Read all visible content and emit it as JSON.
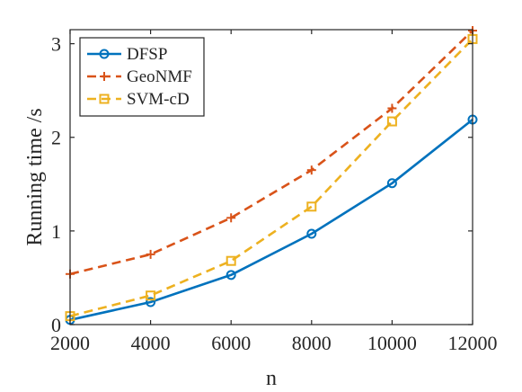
{
  "chart_data": {
    "type": "line",
    "title": "",
    "xlabel": "n",
    "ylabel": "Running time /s",
    "x": [
      2000,
      4000,
      6000,
      8000,
      10000,
      12000
    ],
    "xlim": [
      2000,
      12000
    ],
    "ylim": [
      0,
      3.15
    ],
    "xticks": [
      2000,
      4000,
      6000,
      8000,
      10000,
      12000
    ],
    "yticks": [
      0,
      1,
      2,
      3
    ],
    "grid": false,
    "legend_position": "top-left",
    "series": [
      {
        "name": "DFSP",
        "color": "#0072BD",
        "line_style": "solid",
        "marker": "circle",
        "values": [
          0.05,
          0.24,
          0.53,
          0.97,
          1.51,
          2.19
        ]
      },
      {
        "name": "GeoNMF",
        "color": "#D95319",
        "line_style": "dashed",
        "marker": "plus",
        "values": [
          0.54,
          0.75,
          1.14,
          1.65,
          2.31,
          3.14
        ]
      },
      {
        "name": "SVM-cD",
        "color": "#EDB120",
        "line_style": "dashed",
        "marker": "square",
        "values": [
          0.09,
          0.31,
          0.68,
          1.26,
          2.17,
          3.05
        ]
      }
    ]
  }
}
